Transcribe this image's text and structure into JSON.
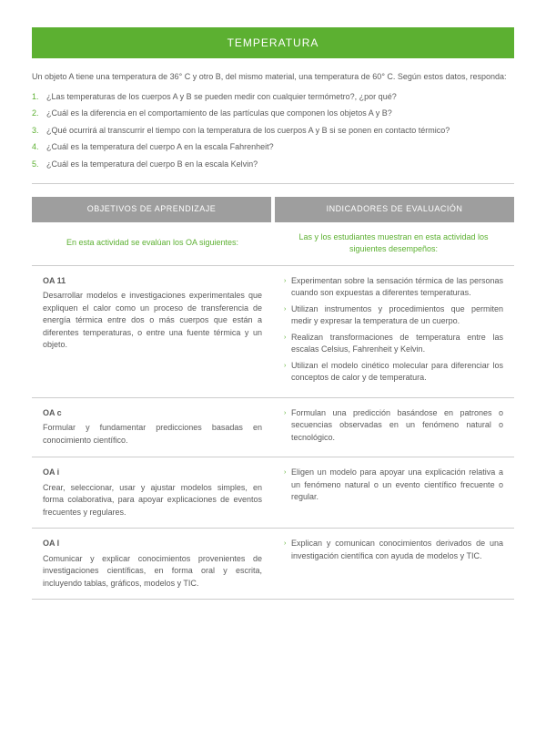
{
  "title": "TEMPERATURA",
  "intro": "Un objeto A tiene una temperatura de 36° C y otro B, del mismo material, una temperatura de 60° C. Según estos datos, responda:",
  "questions": [
    "¿Las temperaturas de los cuerpos A y B se pueden medir con cualquier termómetro?, ¿por qué?",
    "¿Cuál es la diferencia en el comportamiento de las partículas que componen los objetos A y B?",
    "¿Qué ocurrirá al transcurrir el tiempo con la temperatura de los cuerpos A y B si se ponen en contacto térmico?",
    "¿Cuál es la temperatura del cuerpo A en la escala Fahrenheit?",
    "¿Cuál es la temperatura del cuerpo B en la escala Kelvin?"
  ],
  "table": {
    "headers": {
      "left": "OBJETIVOS DE APRENDIZAJE",
      "right": "INDICADORES DE EVALUACIÓN"
    },
    "subheaders": {
      "left": "En esta actividad se evalúan los OA siguientes:",
      "right": "Las y los estudiantes muestran en esta actividad los siguientes desempeños:"
    },
    "rows": [
      {
        "oa_code": "OA 11",
        "oa_desc": "Desarrollar modelos e investigaciones experimentales que expliquen el calor como un proceso de transferencia de energía térmica entre dos o más cuerpos que están a diferentes temperaturas, o entre una fuente térmica y un objeto.",
        "indicators": [
          "Experimentan sobre la sensación térmica de las personas cuando son expuestas a diferentes temperaturas.",
          "Utilizan instrumentos y procedimientos que permiten medir y expresar la temperatura de un cuerpo.",
          "Realizan transformaciones de temperatura entre las escalas Celsius, Fahrenheit y Kelvin.",
          "Utilizan el modelo cinético molecular para diferenciar los conceptos de calor y de temperatura."
        ]
      },
      {
        "oa_code": "OA c",
        "oa_desc": "Formular y fundamentar predicciones basadas en conocimiento científico.",
        "indicators": [
          "Formulan una predicción basándose en patrones o secuencias observadas en un fenómeno natural o tecnológico."
        ]
      },
      {
        "oa_code": "OA i",
        "oa_desc": "Crear, seleccionar, usar y ajustar modelos simples, en forma colaborativa, para apoyar explicaciones de eventos frecuentes y regulares.",
        "indicators": [
          "Eligen un modelo para apoyar una explicación relativa a un fenómeno natural o un evento científico frecuente o regular."
        ]
      },
      {
        "oa_code": "OA l",
        "oa_desc": "Comunicar y explicar conocimientos provenientes de investigaciones científicas, en forma oral y escrita, incluyendo tablas, gráficos, modelos y TIC.",
        "indicators": [
          "Explican y comunican conocimientos derivados de una investigación científica con ayuda de modelos y TIC."
        ]
      }
    ]
  },
  "colors": {
    "green": "#5cb031",
    "header_gray": "#9e9e9e",
    "text": "#5a5a5a",
    "border": "#cccccc"
  }
}
